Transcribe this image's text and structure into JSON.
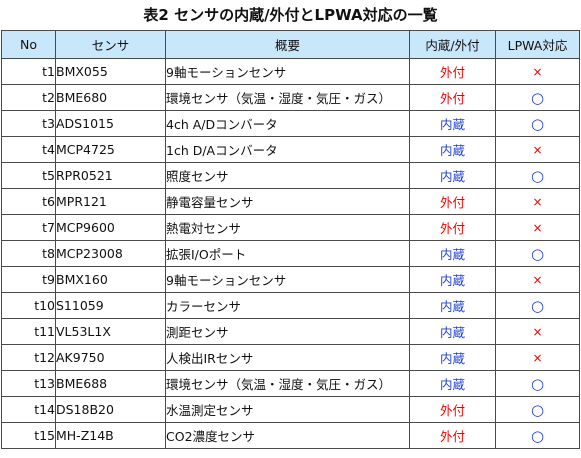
{
  "colors": {
    "header_bg": "#c9e7fb",
    "external": "#ee0000",
    "internal": "#1f3fd1",
    "cross": "#ee0000",
    "circle": "#1f3fd1"
  },
  "caption": "表2 センサの内蔵/外付とLPWA対応の一覧",
  "headers": {
    "no": "No",
    "sensor": "センサ",
    "summary": "概要",
    "mount": "内蔵/外付",
    "lpwa": "LPWA対応"
  },
  "rows": [
    {
      "no": "t1",
      "sensor": "BMX055",
      "summary": "9軸モーションセンサ",
      "mount": "外付",
      "mount_type": "external",
      "lpwa": "×",
      "lpwa_type": "cross"
    },
    {
      "no": "t2",
      "sensor": "BME680",
      "summary": "環境センサ（気温・湿度・気圧・ガス）",
      "mount": "外付",
      "mount_type": "external",
      "lpwa": "○",
      "lpwa_type": "circle"
    },
    {
      "no": "t3",
      "sensor": "ADS1015",
      "summary": "4ch A/Dコンバータ",
      "mount": "内蔵",
      "mount_type": "internal",
      "lpwa": "○",
      "lpwa_type": "circle"
    },
    {
      "no": "t4",
      "sensor": "MCP4725",
      "summary": "1ch D/Aコンバータ",
      "mount": "内蔵",
      "mount_type": "internal",
      "lpwa": "×",
      "lpwa_type": "cross"
    },
    {
      "no": "t5",
      "sensor": "RPR0521",
      "summary": "照度センサ",
      "mount": "内蔵",
      "mount_type": "internal",
      "lpwa": "○",
      "lpwa_type": "circle"
    },
    {
      "no": "t6",
      "sensor": "MPR121",
      "summary": "静電容量センサ",
      "mount": "外付",
      "mount_type": "external",
      "lpwa": "×",
      "lpwa_type": "cross"
    },
    {
      "no": "t7",
      "sensor": "MCP9600",
      "summary": "熱電対センサ",
      "mount": "外付",
      "mount_type": "external",
      "lpwa": "×",
      "lpwa_type": "cross"
    },
    {
      "no": "t8",
      "sensor": "MCP23008",
      "summary": "拡張I/Oポート",
      "mount": "内蔵",
      "mount_type": "internal",
      "lpwa": "○",
      "lpwa_type": "circle"
    },
    {
      "no": "t9",
      "sensor": "BMX160",
      "summary": "9軸モーションセンサ",
      "mount": "内蔵",
      "mount_type": "internal",
      "lpwa": "×",
      "lpwa_type": "cross"
    },
    {
      "no": "t10",
      "sensor": "S11059",
      "summary": "カラーセンサ",
      "mount": "内蔵",
      "mount_type": "internal",
      "lpwa": "○",
      "lpwa_type": "circle"
    },
    {
      "no": "t11",
      "sensor": "VL53L1X",
      "summary": "測距センサ",
      "mount": "内蔵",
      "mount_type": "internal",
      "lpwa": "×",
      "lpwa_type": "cross"
    },
    {
      "no": "t12",
      "sensor": "AK9750",
      "summary": "人検出IRセンサ",
      "mount": "内蔵",
      "mount_type": "internal",
      "lpwa": "×",
      "lpwa_type": "cross"
    },
    {
      "no": "t13",
      "sensor": "BME688",
      "summary": "環境センサ（気温・湿度・気圧・ガス）",
      "mount": "内蔵",
      "mount_type": "internal",
      "lpwa": "○",
      "lpwa_type": "circle"
    },
    {
      "no": "t14",
      "sensor": "DS18B20",
      "summary": "水温測定センサ",
      "mount": "外付",
      "mount_type": "external",
      "lpwa": "○",
      "lpwa_type": "circle"
    },
    {
      "no": "t15",
      "sensor": "MH-Z14B",
      "summary": "CO2濃度センサ",
      "mount": "外付",
      "mount_type": "external",
      "lpwa": "○",
      "lpwa_type": "circle"
    }
  ]
}
